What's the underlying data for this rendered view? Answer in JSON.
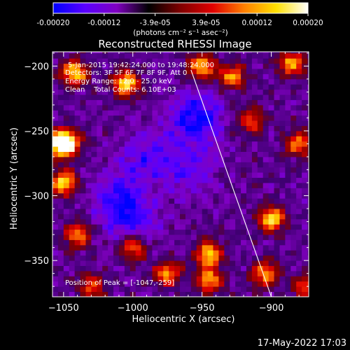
{
  "colorbar": {
    "tick_labels": [
      "-0.00020",
      "-0.00012",
      "-3.9e-05",
      "3.9e-05",
      "0.00012",
      "0.00020"
    ],
    "unit_label": "(photons cm⁻² s⁻¹ asec⁻²)",
    "colors": [
      "#0000ff",
      "#5a00ff",
      "#8000c0",
      "#000000",
      "#800000",
      "#e00000",
      "#ff8000",
      "#ffe000",
      "#ffffff"
    ]
  },
  "chart_data": {
    "type": "heatmap",
    "title": "Reconstructed RHESSI Image",
    "xlabel": "Heliocentric X (arcsec)",
    "ylabel": "Heliocentric Y (arcsec)",
    "xlim": [
      -1058,
      -873
    ],
    "ylim": [
      -378,
      -189
    ],
    "x_ticks": [
      -1050,
      -1000,
      -950,
      -900
    ],
    "y_ticks": [
      -200,
      -250,
      -300,
      -350
    ],
    "x_tick_labels": [
      "−1050",
      "−1000",
      "−950",
      "−900"
    ],
    "y_tick_labels": [
      "−200",
      "−250",
      "−300",
      "−350"
    ],
    "annotations": [
      "5-Jan-2015 19:42:24.000 to 19:48:24.000",
      "Detectors: 3F 5F 6F 7F 8F 9F, Att 0",
      "Energy Range: 12.0 - 25.0 keV",
      "Clean    Total Counts: 6.10E+03",
      "Position of Peak = [-1047,-259]"
    ],
    "peak_position": [
      -1047,
      -259
    ],
    "limb_line": [
      [
        -958,
        -203
      ],
      [
        -900,
        -378
      ]
    ],
    "hot_spots": [
      {
        "x": -1042,
        "y": -205,
        "intensity": 0.9
      },
      {
        "x": -1005,
        "y": -213,
        "intensity": 1.0
      },
      {
        "x": -950,
        "y": -200,
        "intensity": 0.85
      },
      {
        "x": -928,
        "y": -208,
        "intensity": 0.75
      },
      {
        "x": -885,
        "y": -198,
        "intensity": 0.8
      },
      {
        "x": -1054,
        "y": -260,
        "intensity": 0.85
      },
      {
        "x": -1047,
        "y": -259,
        "intensity": 1.0
      },
      {
        "x": -1050,
        "y": -290,
        "intensity": 0.95
      },
      {
        "x": -1040,
        "y": -330,
        "intensity": 0.7
      },
      {
        "x": -1000,
        "y": -340,
        "intensity": 0.7
      },
      {
        "x": -975,
        "y": -360,
        "intensity": 0.75
      },
      {
        "x": -945,
        "y": -345,
        "intensity": 0.9
      },
      {
        "x": -945,
        "y": -365,
        "intensity": 0.8
      },
      {
        "x": -900,
        "y": -318,
        "intensity": 0.95
      },
      {
        "x": -905,
        "y": -360,
        "intensity": 0.75
      },
      {
        "x": -880,
        "y": -260,
        "intensity": 0.7
      },
      {
        "x": -915,
        "y": -242,
        "intensity": 0.65
      },
      {
        "x": -875,
        "y": -370,
        "intensity": 0.6
      },
      {
        "x": -1030,
        "y": -370,
        "intensity": 0.6
      }
    ],
    "cold_spots": [
      {
        "x": -955,
        "y": -240,
        "intensity": 0.85
      },
      {
        "x": -1010,
        "y": -300,
        "intensity": 0.6
      },
      {
        "x": -990,
        "y": -270,
        "intensity": 0.5
      },
      {
        "x": -1000,
        "y": -320,
        "intensity": 0.55
      },
      {
        "x": -960,
        "y": -280,
        "intensity": 0.45
      }
    ]
  },
  "footer": {
    "timestamp": "17-May-2022 17:03"
  }
}
